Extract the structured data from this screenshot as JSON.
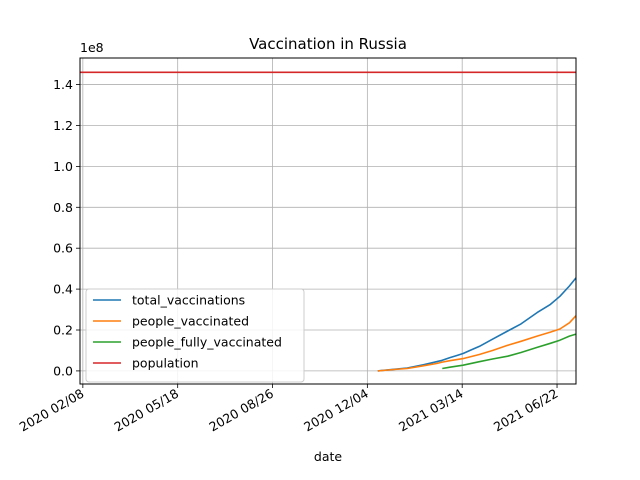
{
  "chart_data": {
    "type": "line",
    "title": "Vaccination in Russia",
    "xlabel": "date",
    "ylabel": "",
    "y_scale_label": "1e8",
    "y_scale": 100000000,
    "ylim": [
      -0.064,
      1.53
    ],
    "xlim": [
      "2020-02-05",
      "2021-07-12"
    ],
    "grid": true,
    "legend_position": "lower-left",
    "x_ticks": [
      {
        "date": "2020-02-08",
        "label": "2020 02/08"
      },
      {
        "date": "2020-05-18",
        "label": "2020 05/18"
      },
      {
        "date": "2020-08-26",
        "label": "2020 08/26"
      },
      {
        "date": "2020-12-04",
        "label": "2020 12/04"
      },
      {
        "date": "2021-03-14",
        "label": "2021 03/14"
      },
      {
        "date": "2021-06-22",
        "label": "2021 06/22"
      }
    ],
    "y_ticks": [
      {
        "value": 0.0,
        "label": "0.0"
      },
      {
        "value": 0.2,
        "label": "0.2"
      },
      {
        "value": 0.4,
        "label": "0.4"
      },
      {
        "value": 0.6,
        "label": "0.6"
      },
      {
        "value": 0.8,
        "label": "0.8"
      },
      {
        "value": 1.0,
        "label": "1.0"
      },
      {
        "value": 1.2,
        "label": "1.2"
      },
      {
        "value": 1.4,
        "label": "1.4"
      }
    ],
    "series": [
      {
        "name": "total_vaccinations",
        "color": "#1f77b4",
        "points": [
          [
            "2020-12-15",
            0.0
          ],
          [
            "2021-01-01",
            0.008
          ],
          [
            "2021-01-15",
            0.014
          ],
          [
            "2021-02-01",
            0.03
          ],
          [
            "2021-02-15",
            0.045
          ],
          [
            "2021-02-21",
            0.052
          ],
          [
            "2021-03-01",
            0.065
          ],
          [
            "2021-03-08",
            0.075
          ],
          [
            "2021-03-15",
            0.085
          ],
          [
            "2021-03-22",
            0.1
          ],
          [
            "2021-04-01",
            0.12
          ],
          [
            "2021-04-15",
            0.155
          ],
          [
            "2021-05-01",
            0.195
          ],
          [
            "2021-05-15",
            0.23
          ],
          [
            "2021-06-01",
            0.285
          ],
          [
            "2021-06-15",
            0.325
          ],
          [
            "2021-06-25",
            0.365
          ],
          [
            "2021-07-05",
            0.415
          ],
          [
            "2021-07-12",
            0.455
          ]
        ]
      },
      {
        "name": "people_vaccinated",
        "color": "#ff7f0e",
        "points": [
          [
            "2020-12-15",
            0.0
          ],
          [
            "2021-01-01",
            0.007
          ],
          [
            "2021-01-15",
            0.012
          ],
          [
            "2021-02-01",
            0.025
          ],
          [
            "2021-02-15",
            0.036
          ],
          [
            "2021-02-21",
            0.043
          ],
          [
            "2021-03-01",
            0.05
          ],
          [
            "2021-03-15",
            0.06
          ],
          [
            "2021-04-01",
            0.08
          ],
          [
            "2021-04-15",
            0.1
          ],
          [
            "2021-05-01",
            0.125
          ],
          [
            "2021-05-15",
            0.145
          ],
          [
            "2021-06-01",
            0.17
          ],
          [
            "2021-06-15",
            0.19
          ],
          [
            "2021-06-25",
            0.205
          ],
          [
            "2021-07-05",
            0.235
          ],
          [
            "2021-07-12",
            0.27
          ]
        ]
      },
      {
        "name": "people_fully_vaccinated",
        "color": "#2ca02c",
        "points": [
          [
            "2021-02-21",
            0.012
          ],
          [
            "2021-03-01",
            0.018
          ],
          [
            "2021-03-15",
            0.028
          ],
          [
            "2021-04-01",
            0.045
          ],
          [
            "2021-04-15",
            0.058
          ],
          [
            "2021-05-01",
            0.072
          ],
          [
            "2021-05-15",
            0.09
          ],
          [
            "2021-06-01",
            0.115
          ],
          [
            "2021-06-15",
            0.135
          ],
          [
            "2021-06-25",
            0.15
          ],
          [
            "2021-07-05",
            0.17
          ],
          [
            "2021-07-12",
            0.18
          ]
        ]
      },
      {
        "name": "population",
        "color": "#d62728",
        "points": [
          [
            "2020-02-05",
            1.46
          ],
          [
            "2021-07-12",
            1.46
          ]
        ]
      }
    ]
  }
}
